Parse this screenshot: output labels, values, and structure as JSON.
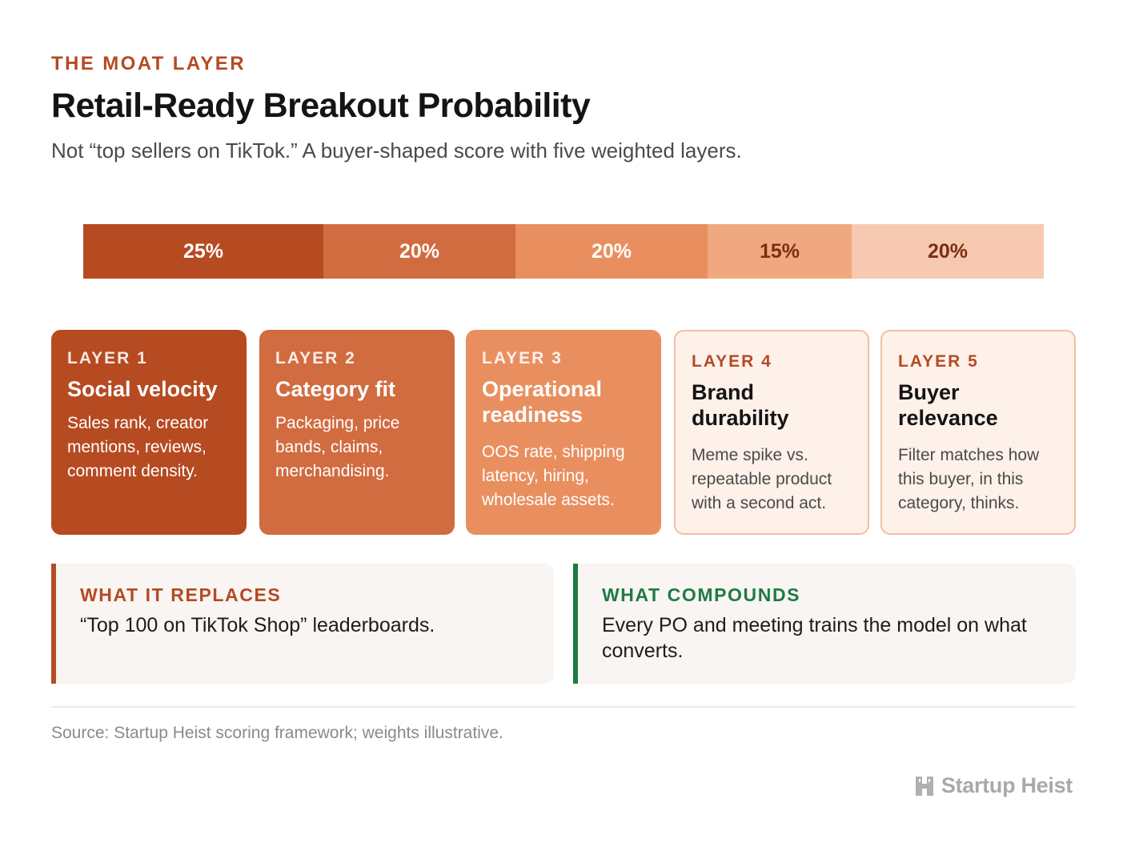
{
  "header": {
    "eyebrow": "THE MOAT LAYER",
    "title": "Retail-Ready Breakout Probability",
    "subtitle": "Not “top sellers on TikTok.” A buyer-shaped score with five weighted layers."
  },
  "weights": [
    {
      "label": "25%",
      "value": 25,
      "color": "#b64a21"
    },
    {
      "label": "20%",
      "value": 20,
      "color": "#d16b40"
    },
    {
      "label": "20%",
      "value": 20,
      "color": "#e98f5f"
    },
    {
      "label": "15%",
      "value": 15,
      "color": "#f0a880"
    },
    {
      "label": "20%",
      "value": 20,
      "color": "#f6c9b0"
    }
  ],
  "layers": [
    {
      "label": "LAYER 1",
      "name": "Social velocity",
      "desc": "Sales rank, creator mentions, reviews, comment density."
    },
    {
      "label": "LAYER 2",
      "name": "Category fit",
      "desc": "Packaging, price bands, claims, merchandising."
    },
    {
      "label": "LAYER 3",
      "name": "Operational readiness",
      "desc": "OOS rate, shipping latency, hiring, wholesale assets."
    },
    {
      "label": "LAYER 4",
      "name": "Brand durability",
      "desc": "Meme spike vs. repeatable product with a second act."
    },
    {
      "label": "LAYER 5",
      "name": "Buyer relevance",
      "desc": "Filter matches how this buyer, in this category, thinks."
    }
  ],
  "callouts": {
    "replaces": {
      "label": "WHAT IT REPLACES",
      "text": "“Top 100 on TikTok Shop” leaderboards.",
      "accent": "#b64a21"
    },
    "compounds": {
      "label": "WHAT COMPOUNDS",
      "text": "Every PO and meeting trains the model on what converts.",
      "accent": "#1f7a45"
    }
  },
  "footer": {
    "source": "Source: Startup Heist scoring framework; weights illustrative.",
    "brand": "Startup Heist",
    "brand_icon": "heist-logo-icon"
  }
}
